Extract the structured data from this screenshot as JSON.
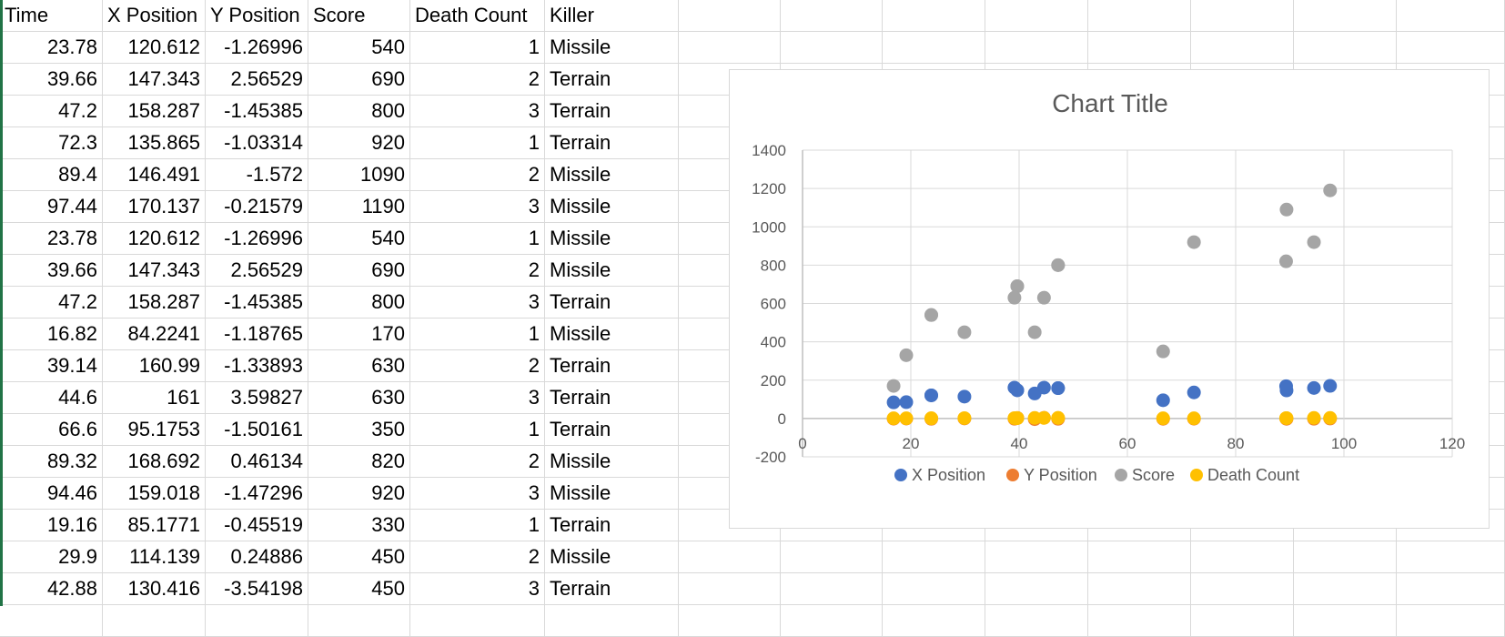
{
  "sheet": {
    "headers": [
      "Time",
      "X Position",
      "Y Position",
      "Score",
      "Death Count",
      "Killer"
    ],
    "rows": [
      [
        "23.78",
        "120.612",
        "-1.26996",
        "540",
        "1",
        "Missile"
      ],
      [
        "39.66",
        "147.343",
        "2.56529",
        "690",
        "2",
        "Terrain"
      ],
      [
        "47.2",
        "158.287",
        "-1.45385",
        "800",
        "3",
        "Terrain"
      ],
      [
        "72.3",
        "135.865",
        "-1.03314",
        "920",
        "1",
        "Terrain"
      ],
      [
        "89.4",
        "146.491",
        "-1.572",
        "1090",
        "2",
        "Missile"
      ],
      [
        "97.44",
        "170.137",
        "-0.21579",
        "1190",
        "3",
        "Missile"
      ],
      [
        "23.78",
        "120.612",
        "-1.26996",
        "540",
        "1",
        "Missile"
      ],
      [
        "39.66",
        "147.343",
        "2.56529",
        "690",
        "2",
        "Missile"
      ],
      [
        "47.2",
        "158.287",
        "-1.45385",
        "800",
        "3",
        "Terrain"
      ],
      [
        "16.82",
        "84.2241",
        "-1.18765",
        "170",
        "1",
        "Missile"
      ],
      [
        "39.14",
        "160.99",
        "-1.33893",
        "630",
        "2",
        "Terrain"
      ],
      [
        "44.6",
        "161",
        "3.59827",
        "630",
        "3",
        "Terrain"
      ],
      [
        "66.6",
        "95.1753",
        "-1.50161",
        "350",
        "1",
        "Terrain"
      ],
      [
        "89.32",
        "168.692",
        "0.46134",
        "820",
        "2",
        "Missile"
      ],
      [
        "94.46",
        "159.018",
        "-1.47296",
        "920",
        "3",
        "Missile"
      ],
      [
        "19.16",
        "85.1771",
        "-0.45519",
        "330",
        "1",
        "Terrain"
      ],
      [
        "29.9",
        "114.139",
        "0.24886",
        "450",
        "2",
        "Missile"
      ],
      [
        "42.88",
        "130.416",
        "-3.54198",
        "450",
        "3",
        "Terrain"
      ]
    ]
  },
  "chart_data": {
    "type": "scatter",
    "title": "Chart Title",
    "xlabel": "",
    "ylabel": "",
    "xlim": [
      0,
      120
    ],
    "ylim": [
      -200,
      1400
    ],
    "x_ticks": [
      "0",
      "20",
      "40",
      "60",
      "80",
      "100",
      "120"
    ],
    "y_ticks": [
      "-200",
      "0",
      "200",
      "400",
      "600",
      "800",
      "1000",
      "1200",
      "1400"
    ],
    "grid": true,
    "legend_position": "bottom",
    "x": [
      23.78,
      39.66,
      47.2,
      72.3,
      89.4,
      97.44,
      23.78,
      39.66,
      47.2,
      16.82,
      39.14,
      44.6,
      66.6,
      89.32,
      94.46,
      19.16,
      29.9,
      42.88
    ],
    "series": [
      {
        "name": "X Position",
        "color": "#4472c4",
        "values": [
          120.612,
          147.343,
          158.287,
          135.865,
          146.491,
          170.137,
          120.612,
          147.343,
          158.287,
          84.2241,
          160.99,
          161,
          95.1753,
          168.692,
          159.018,
          85.1771,
          114.139,
          130.416
        ]
      },
      {
        "name": "Y Position",
        "color": "#ed7d31",
        "values": [
          -1.26996,
          2.56529,
          -1.45385,
          -1.03314,
          -1.572,
          -0.21579,
          -1.26996,
          2.56529,
          -1.45385,
          -1.18765,
          -1.33893,
          3.59827,
          -1.50161,
          0.46134,
          -1.47296,
          -0.45519,
          0.24886,
          -3.54198
        ]
      },
      {
        "name": "Score",
        "color": "#a5a5a5",
        "values": [
          540,
          690,
          800,
          920,
          1090,
          1190,
          540,
          690,
          800,
          170,
          630,
          630,
          350,
          820,
          920,
          330,
          450,
          450
        ]
      },
      {
        "name": "Death Count",
        "color": "#ffc000",
        "values": [
          1,
          2,
          3,
          1,
          2,
          3,
          1,
          2,
          3,
          1,
          2,
          3,
          1,
          2,
          3,
          1,
          2,
          3
        ]
      }
    ]
  }
}
